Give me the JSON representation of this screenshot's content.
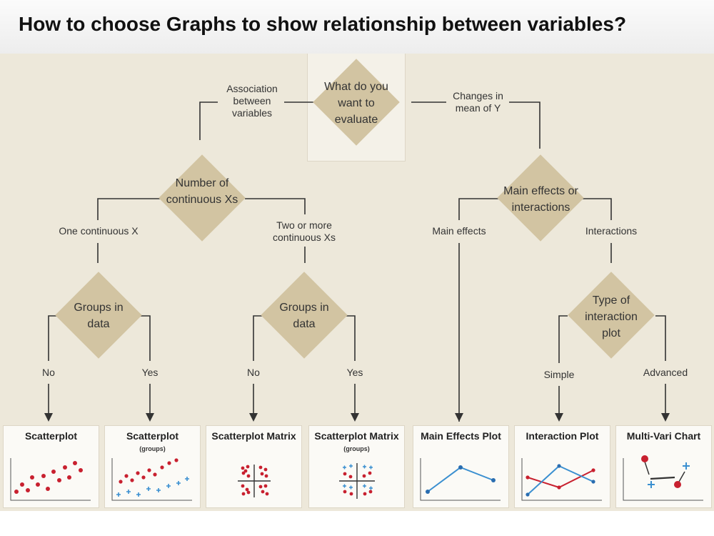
{
  "title": "How to choose Graphs to show relationship between variables?",
  "decisions": {
    "evaluate": "What do you want to evaluate",
    "continuous": "Number of continuous Xs",
    "groups_left": "Groups in data",
    "groups_right": "Groups in data",
    "main_or_inter": "Main effects or interactions",
    "interaction_type": "Type of interaction plot"
  },
  "branches": {
    "association": "Association between variables",
    "changes": "Changes in mean of Y",
    "one_x": "One continuous X",
    "two_x": "Two or more continuous Xs",
    "main_effects": "Main effects",
    "interactions": "Interactions",
    "no1": "No",
    "yes1": "Yes",
    "no2": "No",
    "yes2": "Yes",
    "simple": "Simple",
    "advanced": "Advanced"
  },
  "cards": [
    {
      "title": "Scatterplot",
      "subtitle": ""
    },
    {
      "title": "Scatterplot",
      "subtitle": "(groups)"
    },
    {
      "title": "Scatterplot Matrix",
      "subtitle": ""
    },
    {
      "title": "Scatterplot Matrix",
      "subtitle": "(groups)"
    },
    {
      "title": "Main Effects Plot",
      "subtitle": ""
    },
    {
      "title": "Interaction Plot",
      "subtitle": ""
    },
    {
      "title": "Multi-Vari Chart",
      "subtitle": ""
    }
  ],
  "colors": {
    "background": "#ede8da",
    "diamond": "#d2c4a2",
    "connector": "#333333",
    "dot_red": "#c8202f",
    "plus_blue": "#3a8fd0",
    "line_blue": "#3a8fd0",
    "line_red": "#c8202f"
  }
}
